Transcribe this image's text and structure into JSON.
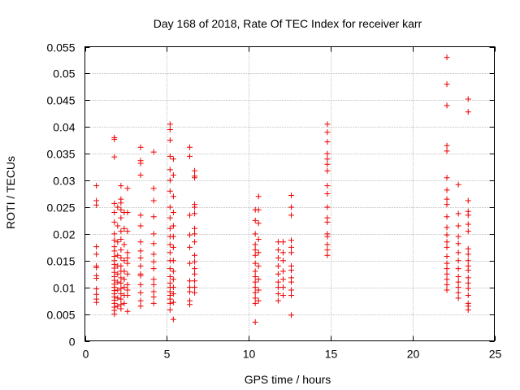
{
  "chart_data": {
    "type": "scatter",
    "title": "Day 168 of 2018, Rate Of TEC Index for receiver karr",
    "xlabel": "GPS time / hours",
    "ylabel": "ROTI / TECUs",
    "xlim": [
      0,
      25
    ],
    "ylim": [
      0,
      0.055
    ],
    "grid": true,
    "marker": "+",
    "color": "#ee0000",
    "x_ticks": [
      0,
      5,
      10,
      15,
      20,
      25
    ],
    "x_tick_labels": [
      "0",
      "5",
      "10",
      "15",
      "20",
      "25"
    ],
    "y_ticks": [
      0,
      0.005,
      0.01,
      0.015,
      0.02,
      0.025,
      0.03,
      0.035,
      0.04,
      0.045,
      0.05,
      0.055
    ],
    "y_tick_labels": [
      "0",
      "0.005",
      "0.01",
      "0.015",
      "0.02",
      "0.025",
      "0.03",
      "0.035",
      "0.04",
      "0.045",
      "0.05",
      "0.055"
    ],
    "series": [
      {
        "name": "ROTI",
        "points": [
          [
            0.7,
            0.029
          ],
          [
            0.7,
            0.0262
          ],
          [
            0.7,
            0.0254
          ],
          [
            0.7,
            0.0176
          ],
          [
            0.7,
            0.0162
          ],
          [
            0.7,
            0.014
          ],
          [
            0.7,
            0.0137
          ],
          [
            0.7,
            0.0122
          ],
          [
            0.7,
            0.0117
          ],
          [
            0.7,
            0.0097
          ],
          [
            0.7,
            0.0087
          ],
          [
            0.7,
            0.0078
          ],
          [
            0.7,
            0.0072
          ],
          [
            1.8,
            0.038
          ],
          [
            1.8,
            0.0377
          ],
          [
            1.8,
            0.0344
          ],
          [
            1.8,
            0.0257
          ],
          [
            1.8,
            0.024
          ],
          [
            1.8,
            0.0222
          ],
          [
            1.8,
            0.02
          ],
          [
            1.8,
            0.0188
          ],
          [
            1.8,
            0.0176
          ],
          [
            1.8,
            0.0168
          ],
          [
            1.8,
            0.0158
          ],
          [
            1.8,
            0.015
          ],
          [
            1.8,
            0.0143
          ],
          [
            1.8,
            0.0136
          ],
          [
            1.8,
            0.0128
          ],
          [
            1.8,
            0.012
          ],
          [
            1.8,
            0.0113
          ],
          [
            1.8,
            0.0106
          ],
          [
            1.8,
            0.01
          ],
          [
            1.8,
            0.0094
          ],
          [
            1.8,
            0.0088
          ],
          [
            1.8,
            0.0082
          ],
          [
            1.8,
            0.0076
          ],
          [
            1.8,
            0.007
          ],
          [
            1.8,
            0.0063
          ],
          [
            1.8,
            0.0057
          ],
          [
            1.8,
            0.005
          ],
          [
            2.0,
            0.025
          ],
          [
            2.0,
            0.0215
          ],
          [
            2.0,
            0.0185
          ],
          [
            2.0,
            0.016
          ],
          [
            2.0,
            0.014
          ],
          [
            2.0,
            0.0125
          ],
          [
            2.0,
            0.011
          ],
          [
            2.0,
            0.0095
          ],
          [
            2.0,
            0.008
          ],
          [
            2.0,
            0.0065
          ],
          [
            2.2,
            0.029
          ],
          [
            2.2,
            0.0265
          ],
          [
            2.2,
            0.0258
          ],
          [
            2.2,
            0.0245
          ],
          [
            2.2,
            0.023
          ],
          [
            2.2,
            0.0205
          ],
          [
            2.2,
            0.019
          ],
          [
            2.2,
            0.017
          ],
          [
            2.2,
            0.0155
          ],
          [
            2.2,
            0.014
          ],
          [
            2.2,
            0.013
          ],
          [
            2.2,
            0.0118
          ],
          [
            2.2,
            0.0108
          ],
          [
            2.2,
            0.0098
          ],
          [
            2.2,
            0.0088
          ],
          [
            2.2,
            0.0078
          ],
          [
            2.2,
            0.0068
          ],
          [
            2.2,
            0.006
          ],
          [
            2.4,
            0.024
          ],
          [
            2.4,
            0.021
          ],
          [
            2.4,
            0.018
          ],
          [
            2.4,
            0.015
          ],
          [
            2.4,
            0.013
          ],
          [
            2.4,
            0.0115
          ],
          [
            2.4,
            0.01
          ],
          [
            2.4,
            0.0085
          ],
          [
            2.4,
            0.007
          ],
          [
            2.6,
            0.0285
          ],
          [
            2.6,
            0.024
          ],
          [
            2.6,
            0.0205
          ],
          [
            2.6,
            0.0165
          ],
          [
            2.6,
            0.0155
          ],
          [
            2.6,
            0.0145
          ],
          [
            2.6,
            0.0125
          ],
          [
            2.6,
            0.0105
          ],
          [
            2.6,
            0.0095
          ],
          [
            2.6,
            0.0085
          ],
          [
            2.6,
            0.0055
          ],
          [
            3.4,
            0.0362
          ],
          [
            3.4,
            0.0337
          ],
          [
            3.4,
            0.0332
          ],
          [
            3.4,
            0.031
          ],
          [
            3.4,
            0.0235
          ],
          [
            3.4,
            0.0215
          ],
          [
            3.4,
            0.0185
          ],
          [
            3.4,
            0.0168
          ],
          [
            3.4,
            0.0155
          ],
          [
            3.4,
            0.014
          ],
          [
            3.4,
            0.0125
          ],
          [
            3.4,
            0.0122
          ],
          [
            3.4,
            0.0105
          ],
          [
            3.4,
            0.009
          ],
          [
            3.4,
            0.0075
          ],
          [
            3.4,
            0.0065
          ],
          [
            4.2,
            0.0353
          ],
          [
            4.2,
            0.0285
          ],
          [
            4.2,
            0.0262
          ],
          [
            4.2,
            0.0232
          ],
          [
            4.2,
            0.02
          ],
          [
            4.2,
            0.0182
          ],
          [
            4.2,
            0.0162
          ],
          [
            4.2,
            0.0148
          ],
          [
            4.2,
            0.0135
          ],
          [
            4.2,
            0.0115
          ],
          [
            4.2,
            0.0105
          ],
          [
            4.2,
            0.0092
          ],
          [
            4.2,
            0.0082
          ],
          [
            4.2,
            0.007
          ],
          [
            5.2,
            0.0405
          ],
          [
            5.2,
            0.0395
          ],
          [
            5.2,
            0.0375
          ],
          [
            5.2,
            0.0345
          ],
          [
            5.2,
            0.032
          ],
          [
            5.2,
            0.03
          ],
          [
            5.2,
            0.028
          ],
          [
            5.2,
            0.025
          ],
          [
            5.2,
            0.023
          ],
          [
            5.2,
            0.021
          ],
          [
            5.2,
            0.0195
          ],
          [
            5.2,
            0.018
          ],
          [
            5.2,
            0.0165
          ],
          [
            5.2,
            0.015
          ],
          [
            5.2,
            0.0135
          ],
          [
            5.2,
            0.012
          ],
          [
            5.2,
            0.0108
          ],
          [
            5.2,
            0.01
          ],
          [
            5.2,
            0.0092
          ],
          [
            5.2,
            0.0085
          ],
          [
            5.2,
            0.0078
          ],
          [
            5.2,
            0.007
          ],
          [
            5.2,
            0.0058
          ],
          [
            5.4,
            0.034
          ],
          [
            5.4,
            0.031
          ],
          [
            5.4,
            0.027
          ],
          [
            5.4,
            0.024
          ],
          [
            5.4,
            0.0215
          ],
          [
            5.4,
            0.0195
          ],
          [
            5.4,
            0.0175
          ],
          [
            5.4,
            0.015
          ],
          [
            5.4,
            0.013
          ],
          [
            5.4,
            0.0115
          ],
          [
            5.4,
            0.01
          ],
          [
            5.4,
            0.0088
          ],
          [
            5.4,
            0.0072
          ],
          [
            5.4,
            0.004
          ],
          [
            6.4,
            0.0362
          ],
          [
            6.4,
            0.0345
          ],
          [
            6.4,
            0.0235
          ],
          [
            6.4,
            0.0198
          ],
          [
            6.4,
            0.0175
          ],
          [
            6.4,
            0.0145
          ],
          [
            6.4,
            0.0112
          ],
          [
            6.4,
            0.01
          ],
          [
            6.4,
            0.0092
          ],
          [
            6.4,
            0.0075
          ],
          [
            6.4,
            0.0068
          ],
          [
            6.7,
            0.0318
          ],
          [
            6.7,
            0.0308
          ],
          [
            6.7,
            0.0305
          ],
          [
            6.7,
            0.0255
          ],
          [
            6.7,
            0.025
          ],
          [
            6.7,
            0.0238
          ],
          [
            6.7,
            0.021
          ],
          [
            6.7,
            0.02
          ],
          [
            6.7,
            0.0185
          ],
          [
            6.7,
            0.016
          ],
          [
            6.7,
            0.0148
          ],
          [
            6.7,
            0.0135
          ],
          [
            6.7,
            0.0125
          ],
          [
            6.7,
            0.0112
          ],
          [
            6.7,
            0.01
          ],
          [
            6.7,
            0.009
          ],
          [
            10.4,
            0.0245
          ],
          [
            10.4,
            0.0225
          ],
          [
            10.4,
            0.02
          ],
          [
            10.4,
            0.018
          ],
          [
            10.4,
            0.017
          ],
          [
            10.4,
            0.016
          ],
          [
            10.4,
            0.0145
          ],
          [
            10.4,
            0.013
          ],
          [
            10.4,
            0.012
          ],
          [
            10.4,
            0.011
          ],
          [
            10.4,
            0.01
          ],
          [
            10.4,
            0.009
          ],
          [
            10.4,
            0.008
          ],
          [
            10.4,
            0.007
          ],
          [
            10.4,
            0.0035
          ],
          [
            10.6,
            0.027
          ],
          [
            10.6,
            0.0245
          ],
          [
            10.6,
            0.022
          ],
          [
            10.6,
            0.019
          ],
          [
            10.6,
            0.0165
          ],
          [
            10.6,
            0.014
          ],
          [
            10.6,
            0.0115
          ],
          [
            10.6,
            0.0095
          ],
          [
            10.6,
            0.0075
          ],
          [
            11.8,
            0.0185
          ],
          [
            11.8,
            0.017
          ],
          [
            11.8,
            0.0155
          ],
          [
            11.8,
            0.014
          ],
          [
            11.8,
            0.0125
          ],
          [
            11.8,
            0.011
          ],
          [
            11.8,
            0.01
          ],
          [
            11.8,
            0.0088
          ],
          [
            11.8,
            0.0075
          ],
          [
            12.1,
            0.0185
          ],
          [
            12.1,
            0.0165
          ],
          [
            12.1,
            0.015
          ],
          [
            12.1,
            0.013
          ],
          [
            12.1,
            0.0115
          ],
          [
            12.1,
            0.01
          ],
          [
            12.1,
            0.0085
          ],
          [
            12.6,
            0.0272
          ],
          [
            12.6,
            0.025
          ],
          [
            12.6,
            0.0235
          ],
          [
            12.6,
            0.0188
          ],
          [
            12.6,
            0.0175
          ],
          [
            12.6,
            0.0165
          ],
          [
            12.6,
            0.014
          ],
          [
            12.6,
            0.0132
          ],
          [
            12.6,
            0.0118
          ],
          [
            12.6,
            0.011
          ],
          [
            12.6,
            0.0095
          ],
          [
            12.6,
            0.0085
          ],
          [
            12.6,
            0.0048
          ],
          [
            14.8,
            0.0405
          ],
          [
            14.8,
            0.039
          ],
          [
            14.8,
            0.0372
          ],
          [
            14.8,
            0.035
          ],
          [
            14.8,
            0.034
          ],
          [
            14.8,
            0.033
          ],
          [
            14.8,
            0.0318
          ],
          [
            14.8,
            0.029
          ],
          [
            14.8,
            0.0275
          ],
          [
            14.8,
            0.025
          ],
          [
            14.8,
            0.023
          ],
          [
            14.8,
            0.0222
          ],
          [
            14.8,
            0.02
          ],
          [
            14.8,
            0.0195
          ],
          [
            14.8,
            0.018
          ],
          [
            14.8,
            0.017
          ],
          [
            14.8,
            0.016
          ],
          [
            22.1,
            0.053
          ],
          [
            22.1,
            0.048
          ],
          [
            22.1,
            0.044
          ],
          [
            22.1,
            0.0365
          ],
          [
            22.1,
            0.0355
          ],
          [
            22.1,
            0.0305
          ],
          [
            22.1,
            0.0282
          ],
          [
            22.1,
            0.0265
          ],
          [
            22.1,
            0.0255
          ],
          [
            22.1,
            0.0232
          ],
          [
            22.1,
            0.0212
          ],
          [
            22.1,
            0.0198
          ],
          [
            22.1,
            0.0185
          ],
          [
            22.1,
            0.0175
          ],
          [
            22.1,
            0.0158
          ],
          [
            22.1,
            0.0145
          ],
          [
            22.1,
            0.0135
          ],
          [
            22.1,
            0.0125
          ],
          [
            22.1,
            0.0115
          ],
          [
            22.1,
            0.0105
          ],
          [
            22.1,
            0.0095
          ],
          [
            22.8,
            0.0292
          ],
          [
            22.8,
            0.0238
          ],
          [
            22.8,
            0.0215
          ],
          [
            22.8,
            0.0195
          ],
          [
            22.8,
            0.0182
          ],
          [
            22.8,
            0.0165
          ],
          [
            22.8,
            0.015
          ],
          [
            22.8,
            0.0135
          ],
          [
            22.8,
            0.012
          ],
          [
            22.8,
            0.011
          ],
          [
            22.8,
            0.01
          ],
          [
            22.8,
            0.009
          ],
          [
            22.8,
            0.008
          ],
          [
            23.4,
            0.0452
          ],
          [
            23.4,
            0.0428
          ],
          [
            23.4,
            0.0262
          ],
          [
            23.4,
            0.0242
          ],
          [
            23.4,
            0.0235
          ],
          [
            23.4,
            0.0218
          ],
          [
            23.4,
            0.0205
          ],
          [
            23.4,
            0.0172
          ],
          [
            23.4,
            0.0162
          ],
          [
            23.4,
            0.015
          ],
          [
            23.4,
            0.014
          ],
          [
            23.4,
            0.0132
          ],
          [
            23.4,
            0.0118
          ],
          [
            23.4,
            0.0108
          ],
          [
            23.4,
            0.0098
          ],
          [
            23.4,
            0.0085
          ],
          [
            23.4,
            0.007
          ],
          [
            23.4,
            0.0065
          ],
          [
            23.4,
            0.0058
          ]
        ]
      }
    ]
  }
}
